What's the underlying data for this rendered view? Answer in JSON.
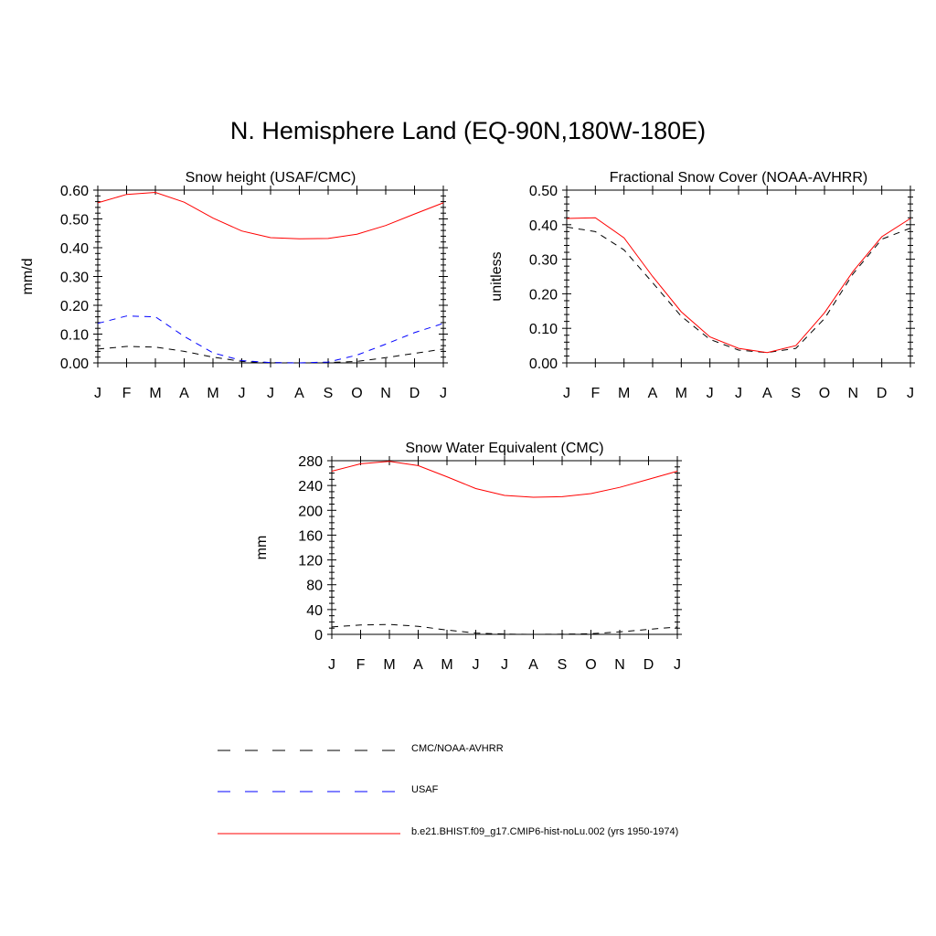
{
  "title": "N. Hemisphere Land (EQ-90N,180W-180E)",
  "colors": {
    "obs": "#000000",
    "usaf": "#0000ff",
    "model": "#ff0000"
  },
  "legend": [
    {
      "label": "CMC/NOAA-AVHRR",
      "color": "#000000",
      "style": "dashed"
    },
    {
      "label": "USAF",
      "color": "#0000ff",
      "style": "dashed"
    },
    {
      "label": "b.e21.BHIST.f09_g17.CMIP6-hist-noLu.002 (yrs 1950-1974)",
      "color": "#ff0000",
      "style": "solid"
    }
  ],
  "chart_data": [
    {
      "type": "line",
      "title": "Snow height (USAF/CMC)",
      "xlabel": "",
      "ylabel": "mm/d",
      "categories": [
        "J",
        "F",
        "M",
        "A",
        "M",
        "J",
        "J",
        "A",
        "S",
        "O",
        "N",
        "D",
        "J"
      ],
      "ylim": [
        0,
        0.6
      ],
      "yticks": [
        "0.00",
        "0.10",
        "0.20",
        "0.30",
        "0.40",
        "0.50",
        "0.60"
      ],
      "series": [
        {
          "name": "CMC/NOAA-AVHRR",
          "color": "#000000",
          "style": "dashed",
          "values": [
            0.048,
            0.057,
            0.055,
            0.04,
            0.02,
            0.005,
            0.001,
            0.0,
            0.001,
            0.005,
            0.018,
            0.033,
            0.048
          ]
        },
        {
          "name": "USAF",
          "color": "#0000ff",
          "style": "dashed",
          "values": [
            0.137,
            0.163,
            0.16,
            0.092,
            0.035,
            0.008,
            0.001,
            0.0,
            0.003,
            0.027,
            0.065,
            0.105,
            0.137
          ]
        },
        {
          "name": "b.e21.BHIST.f09_g17.CMIP6-hist-noLu.002 (yrs 1950-1974)",
          "color": "#ff0000",
          "style": "solid",
          "values": [
            0.556,
            0.585,
            0.592,
            0.558,
            0.503,
            0.458,
            0.435,
            0.431,
            0.432,
            0.447,
            0.477,
            0.517,
            0.556
          ]
        }
      ]
    },
    {
      "type": "line",
      "title": "Fractional Snow Cover (NOAA-AVHRR)",
      "xlabel": "",
      "ylabel": "unitless",
      "categories": [
        "J",
        "F",
        "M",
        "A",
        "M",
        "J",
        "J",
        "A",
        "S",
        "O",
        "N",
        "D",
        "J"
      ],
      "ylim": [
        0,
        0.5
      ],
      "yticks": [
        "0.00",
        "0.10",
        "0.20",
        "0.30",
        "0.40",
        "0.50"
      ],
      "series": [
        {
          "name": "CMC/NOAA-AVHRR",
          "color": "#000000",
          "style": "dashed",
          "values": [
            0.393,
            0.38,
            0.327,
            0.232,
            0.135,
            0.068,
            0.037,
            0.03,
            0.042,
            0.128,
            0.258,
            0.358,
            0.39
          ]
        },
        {
          "name": "b.e21.BHIST.f09_g17.CMIP6-hist-noLu.002 (yrs 1950-1974)",
          "color": "#ff0000",
          "style": "solid",
          "values": [
            0.418,
            0.42,
            0.362,
            0.25,
            0.148,
            0.075,
            0.042,
            0.03,
            0.05,
            0.145,
            0.265,
            0.365,
            0.418
          ]
        }
      ]
    },
    {
      "type": "line",
      "title": "Snow Water Equivalent (CMC)",
      "xlabel": "",
      "ylabel": "mm",
      "categories": [
        "J",
        "F",
        "M",
        "A",
        "M",
        "J",
        "J",
        "A",
        "S",
        "O",
        "N",
        "D",
        "J"
      ],
      "ylim": [
        0,
        280
      ],
      "yticks": [
        "0",
        "40",
        "80",
        "120",
        "160",
        "200",
        "240",
        "280"
      ],
      "series": [
        {
          "name": "CMC/NOAA-AVHRR",
          "color": "#000000",
          "style": "dashed",
          "values": [
            12,
            15,
            16,
            13,
            7,
            2,
            0.5,
            0,
            0.3,
            1,
            4,
            8,
            12
          ]
        },
        {
          "name": "b.e21.BHIST.f09_g17.CMIP6-hist-noLu.002 (yrs 1950-1974)",
          "color": "#ff0000",
          "style": "solid",
          "values": [
            263,
            275,
            279,
            272,
            254,
            235,
            224,
            221,
            222,
            227,
            237,
            250,
            263
          ]
        }
      ]
    }
  ]
}
